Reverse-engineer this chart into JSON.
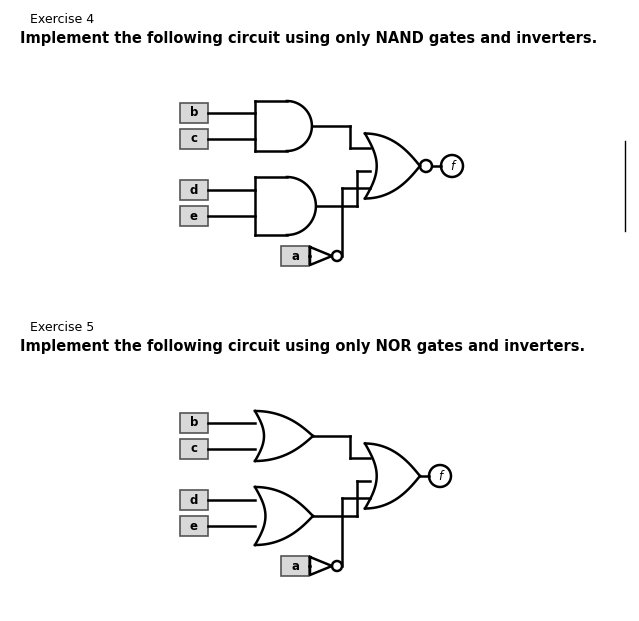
{
  "exercise4_title": "Exercise 4",
  "exercise4_subtitle": "Implement the following circuit using only NAND gates and inverters.",
  "exercise5_title": "Exercise 5",
  "exercise5_subtitle": "Implement the following circuit using only NOR gates and inverters.",
  "bg_color": "#ffffff",
  "text_color": "#000000",
  "line_color": "#000000",
  "lw": 1.8,
  "box_color": "#d8d8d8",
  "box_edge": "#555555"
}
